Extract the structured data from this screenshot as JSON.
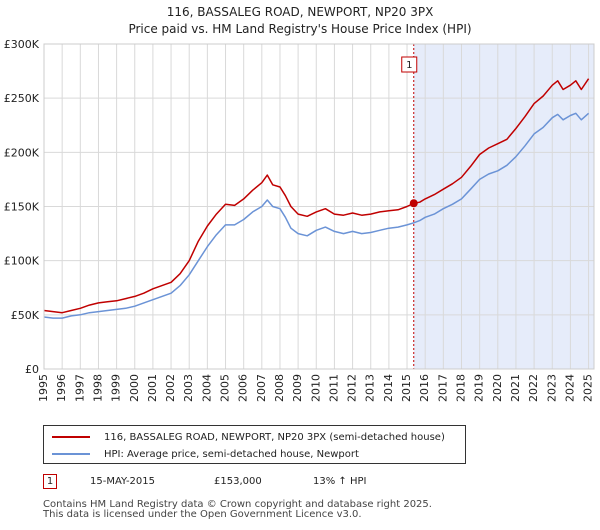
{
  "chart_data": {
    "type": "line",
    "title": "116, BASSALEG ROAD, NEWPORT, NP20 3PX",
    "subtitle": "Price paid vs. HM Land Registry's House Price Index (HPI)",
    "xlabel": "",
    "ylabel": "",
    "xlim": [
      1995,
      2025.3
    ],
    "ylim": [
      0,
      300000
    ],
    "y_ticks": [
      0,
      50000,
      100000,
      150000,
      200000,
      250000,
      300000
    ],
    "y_tick_labels": [
      "£0",
      "£50K",
      "£100K",
      "£150K",
      "£200K",
      "£250K",
      "£300K"
    ],
    "x_ticks": [
      1995,
      1996,
      1997,
      1998,
      1999,
      2000,
      2001,
      2002,
      2003,
      2004,
      2005,
      2006,
      2007,
      2008,
      2009,
      2010,
      2011,
      2012,
      2013,
      2014,
      2015,
      2016,
      2017,
      2018,
      2019,
      2020,
      2021,
      2022,
      2023,
      2024,
      2025
    ],
    "x_tick_labels": [
      "1995",
      "1996",
      "1997",
      "1998",
      "1999",
      "2000",
      "2001",
      "2002",
      "2003",
      "2004",
      "2005",
      "2006",
      "2007",
      "2008",
      "2009",
      "2010",
      "2011",
      "2012",
      "2013",
      "2014",
      "2015",
      "2016",
      "2017",
      "2018",
      "2019",
      "2020",
      "2021",
      "2022",
      "2023",
      "2024",
      "2025"
    ],
    "grid": true,
    "shaded_region": {
      "from": 2015.37,
      "to": 2025.3,
      "color": "#e6ecfa"
    },
    "series": [
      {
        "name": "116, BASSALEG ROAD, NEWPORT, NP20 3PX (semi-detached house)",
        "color": "#c00000",
        "x": [
          1995.0,
          1995.5,
          1996.0,
          1996.5,
          1997.0,
          1997.5,
          1998.0,
          1998.5,
          1999.0,
          1999.5,
          2000.0,
          2000.5,
          2001.0,
          2001.5,
          2002.0,
          2002.5,
          2003.0,
          2003.5,
          2004.0,
          2004.5,
          2005.0,
          2005.5,
          2006.0,
          2006.5,
          2007.0,
          2007.3,
          2007.6,
          2008.0,
          2008.3,
          2008.6,
          2009.0,
          2009.5,
          2010.0,
          2010.5,
          2011.0,
          2011.5,
          2012.0,
          2012.5,
          2013.0,
          2013.5,
          2014.0,
          2014.5,
          2015.0,
          2015.37,
          2015.7,
          2016.0,
          2016.5,
          2017.0,
          2017.5,
          2018.0,
          2018.5,
          2019.0,
          2019.5,
          2020.0,
          2020.5,
          2021.0,
          2021.5,
          2022.0,
          2022.5,
          2023.0,
          2023.3,
          2023.6,
          2024.0,
          2024.3,
          2024.6,
          2025.0
        ],
        "values": [
          54000,
          53000,
          52000,
          54000,
          56000,
          59000,
          61000,
          62000,
          63000,
          65000,
          67000,
          70000,
          74000,
          77000,
          80000,
          88000,
          100000,
          118000,
          132000,
          143000,
          152000,
          151000,
          157000,
          165000,
          172000,
          179000,
          170000,
          168000,
          160000,
          150000,
          143000,
          141000,
          145000,
          148000,
          143000,
          142000,
          144000,
          142000,
          143000,
          145000,
          146000,
          147000,
          150000,
          153000,
          154000,
          157000,
          161000,
          166000,
          171000,
          177000,
          187000,
          198000,
          204000,
          208000,
          212000,
          222000,
          233000,
          245000,
          252000,
          262000,
          266000,
          258000,
          262000,
          266000,
          258000,
          268000
        ]
      },
      {
        "name": "HPI: Average price, semi-detached house, Newport",
        "color": "#6b93d6",
        "x": [
          1995.0,
          1995.5,
          1996.0,
          1996.5,
          1997.0,
          1997.5,
          1998.0,
          1998.5,
          1999.0,
          1999.5,
          2000.0,
          2000.5,
          2001.0,
          2001.5,
          2002.0,
          2002.5,
          2003.0,
          2003.5,
          2004.0,
          2004.5,
          2005.0,
          2005.5,
          2006.0,
          2006.5,
          2007.0,
          2007.3,
          2007.6,
          2008.0,
          2008.3,
          2008.6,
          2009.0,
          2009.5,
          2010.0,
          2010.5,
          2011.0,
          2011.5,
          2012.0,
          2012.5,
          2013.0,
          2013.5,
          2014.0,
          2014.5,
          2015.0,
          2015.37,
          2015.7,
          2016.0,
          2016.5,
          2017.0,
          2017.5,
          2018.0,
          2018.5,
          2019.0,
          2019.5,
          2020.0,
          2020.5,
          2021.0,
          2021.5,
          2022.0,
          2022.5,
          2023.0,
          2023.3,
          2023.6,
          2024.0,
          2024.3,
          2024.6,
          2025.0
        ],
        "values": [
          48000,
          47000,
          47000,
          49000,
          50000,
          52000,
          53000,
          54000,
          55000,
          56000,
          58000,
          61000,
          64000,
          67000,
          70000,
          77000,
          87000,
          100000,
          113000,
          124000,
          133000,
          133000,
          138000,
          145000,
          150000,
          156000,
          150000,
          148000,
          140000,
          130000,
          125000,
          123000,
          128000,
          131000,
          127000,
          125000,
          127000,
          125000,
          126000,
          128000,
          130000,
          131000,
          133000,
          135000,
          137000,
          140000,
          143000,
          148000,
          152000,
          157000,
          166000,
          175000,
          180000,
          183000,
          188000,
          196000,
          206000,
          217000,
          223000,
          232000,
          235000,
          230000,
          234000,
          236000,
          230000,
          236000
        ]
      }
    ],
    "markers": [
      {
        "label": "1",
        "x": 2015.37,
        "value": 153000,
        "color": "#c00000"
      }
    ],
    "legend": [
      {
        "label": "116, BASSALEG ROAD, NEWPORT, NP20 3PX (semi-detached house)",
        "color": "#c00000"
      },
      {
        "label": "HPI: Average price, semi-detached house, Newport",
        "color": "#6b93d6"
      }
    ]
  },
  "sales": [
    {
      "num": "1",
      "date": "15-MAY-2015",
      "price": "£153,000",
      "hpi": "13% ↑ HPI"
    }
  ],
  "footer": {
    "line1": "Contains HM Land Registry data © Crown copyright and database right 2025.",
    "line2": "This data is licensed under the Open Government Licence v3.0."
  }
}
